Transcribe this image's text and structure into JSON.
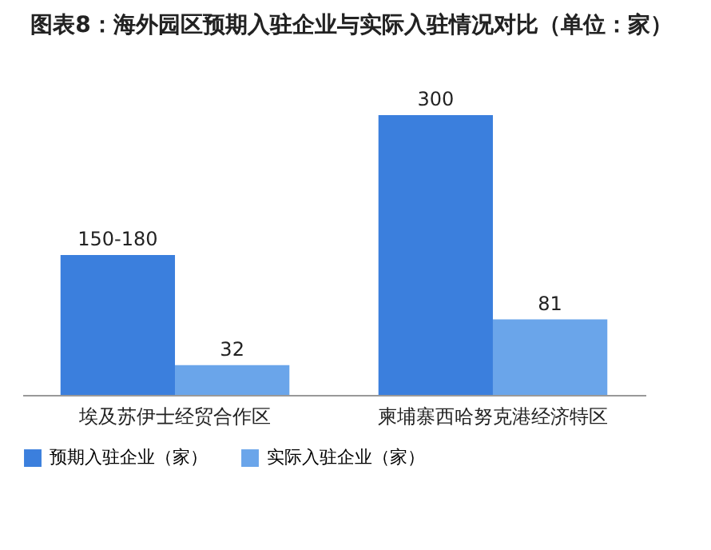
{
  "chart_data": {
    "type": "bar",
    "title": "图表8：海外园区预期入驻企业与实际入驻情况对比（单位：家）",
    "categories": [
      "埃及苏伊士经贸合作区",
      "柬埔寨西哈努克港经济特区"
    ],
    "series": [
      {
        "name": "预期入驻企业（家）",
        "color": "#3b7fdd",
        "values": [
          150,
          300
        ],
        "value_labels": [
          "150-180",
          "300"
        ]
      },
      {
        "name": "实际入驻企业（家）",
        "color": "#6aa5ea",
        "values": [
          32,
          81
        ],
        "value_labels": [
          "32",
          "81"
        ]
      }
    ],
    "legend": "bottom"
  }
}
